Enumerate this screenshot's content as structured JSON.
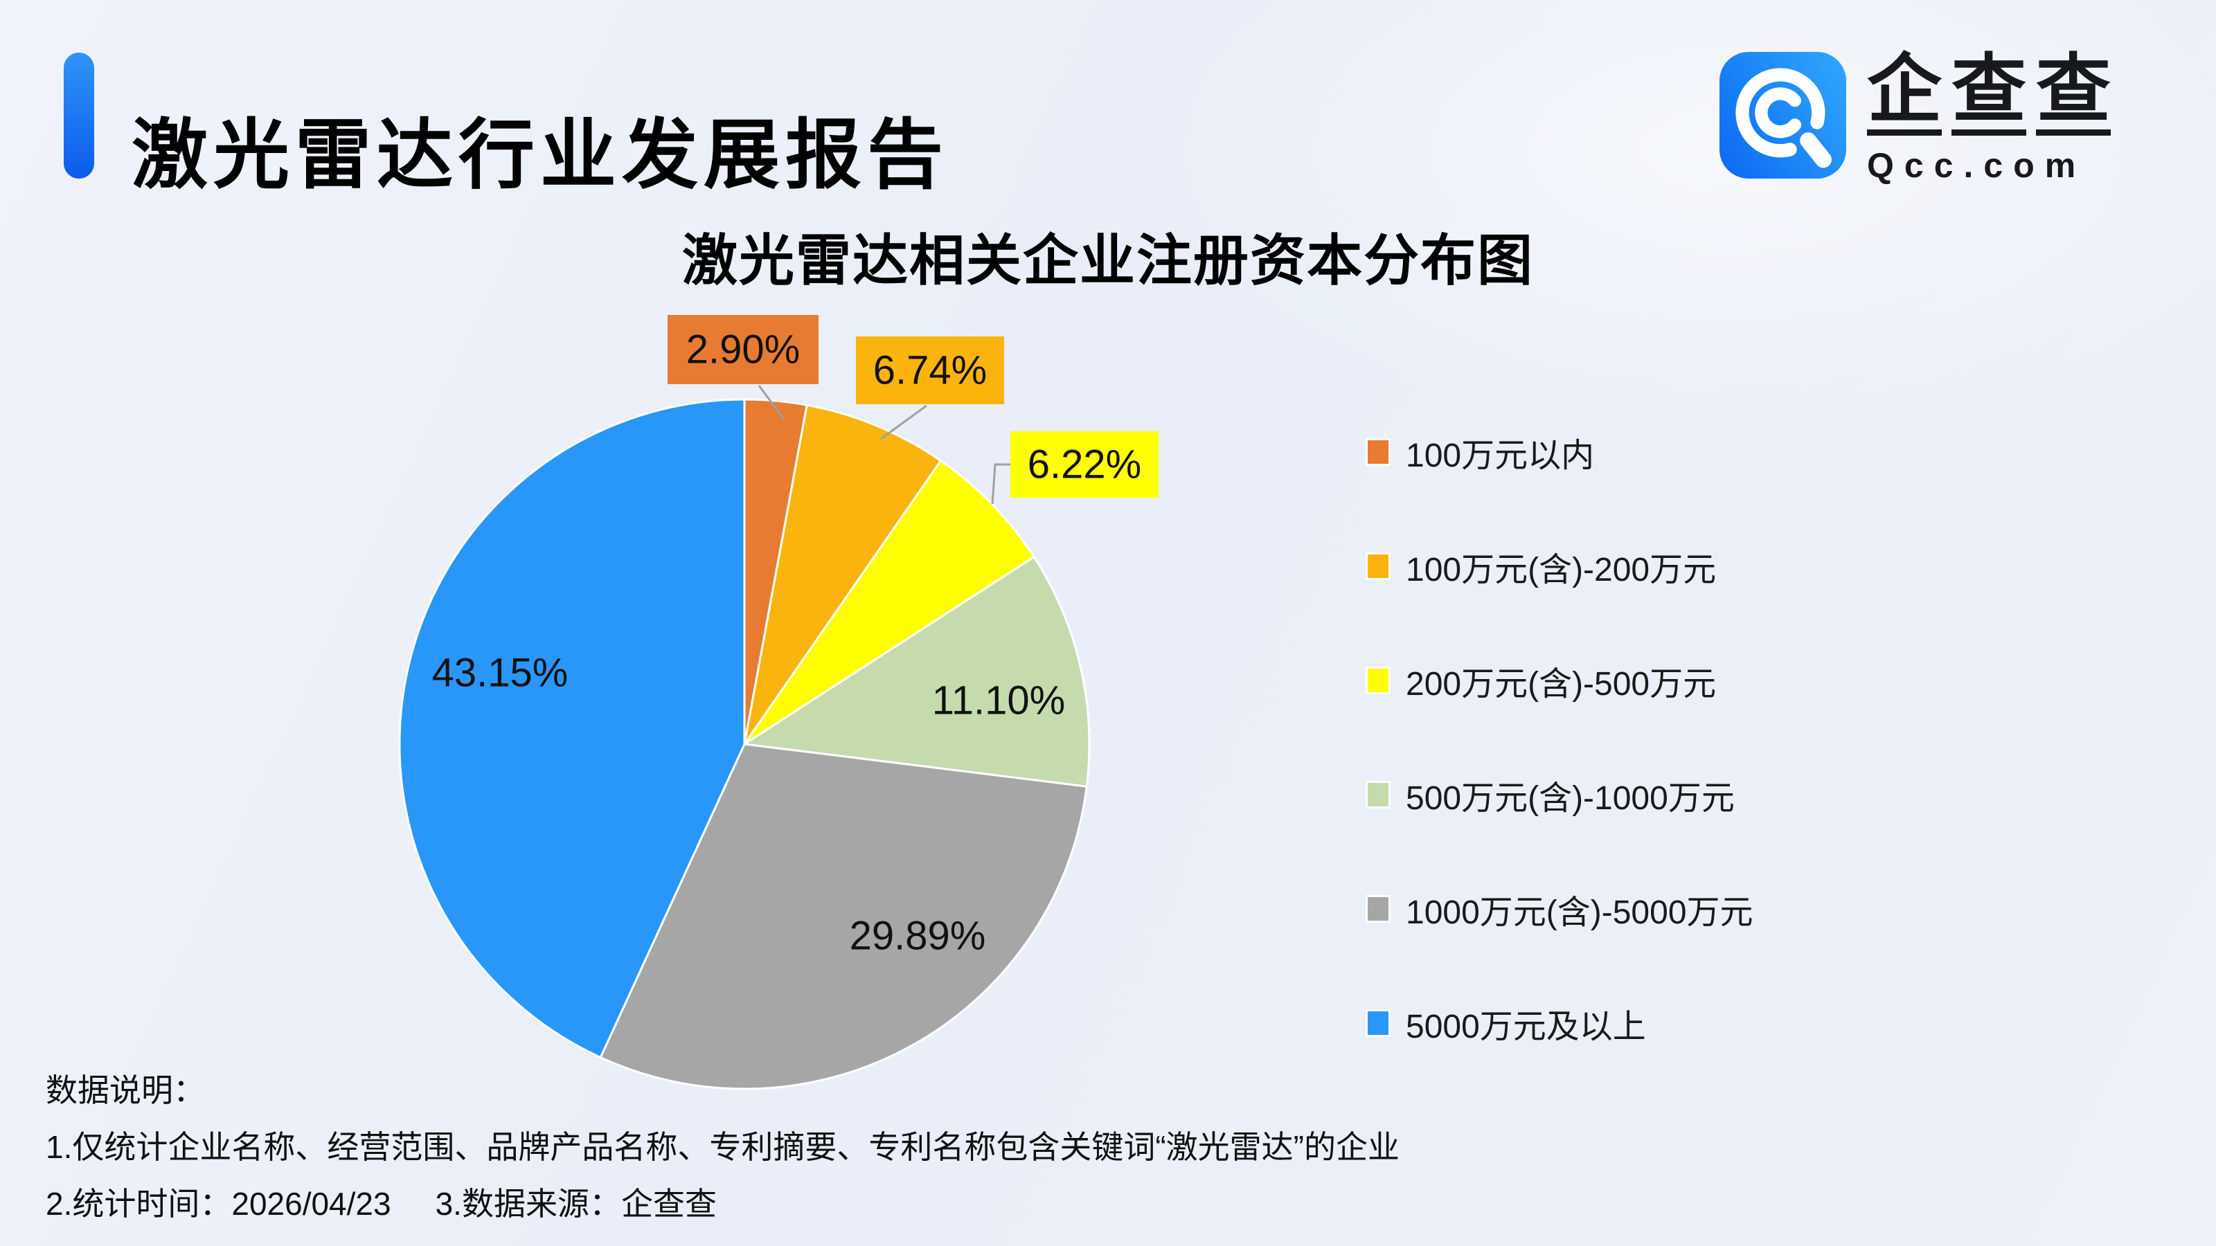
{
  "header": {
    "title": "激光雷达行业发展报告"
  },
  "logo": {
    "brand": "企查查",
    "domain": "Qcc.com"
  },
  "chart_data": {
    "type": "pie",
    "title": "激光雷达相关企业注册资本分布图",
    "value_unit": "percent",
    "start_angle": "top",
    "direction": "clockwise",
    "legend_position": "right",
    "label_line_color": "#a0a0a0",
    "slices": [
      {
        "label": "100万元以内",
        "value": 2.9,
        "display": "2.90%",
        "color": "#E77B32",
        "label_style": "callout"
      },
      {
        "label": "100万元(含)-200万元",
        "value": 6.74,
        "display": "6.74%",
        "color": "#FBB40D",
        "label_style": "callout"
      },
      {
        "label": "200万元(含)-500万元",
        "value": 6.22,
        "display": "6.22%",
        "color": "#FFFF00",
        "label_style": "callout"
      },
      {
        "label": "500万元(含)-1000万元",
        "value": 11.1,
        "display": "11.10%",
        "color": "#C5DBAD",
        "label_style": "inside"
      },
      {
        "label": "1000万元(含)-5000万元",
        "value": 29.89,
        "display": "29.89%",
        "color": "#A6A6A6",
        "label_style": "inside"
      },
      {
        "label": "5000万元及以上",
        "value": 43.15,
        "display": "43.15%",
        "color": "#2997FA",
        "label_style": "inside"
      }
    ]
  },
  "notes": {
    "heading": "数据说明：",
    "items": [
      "1.仅统计企业名称、经营范围、品牌产品名称、专利摘要、专利名称包含关键词“激光雷达”的企业",
      "2.统计时间：2026/04/23",
      "3.数据来源：企查查"
    ]
  }
}
